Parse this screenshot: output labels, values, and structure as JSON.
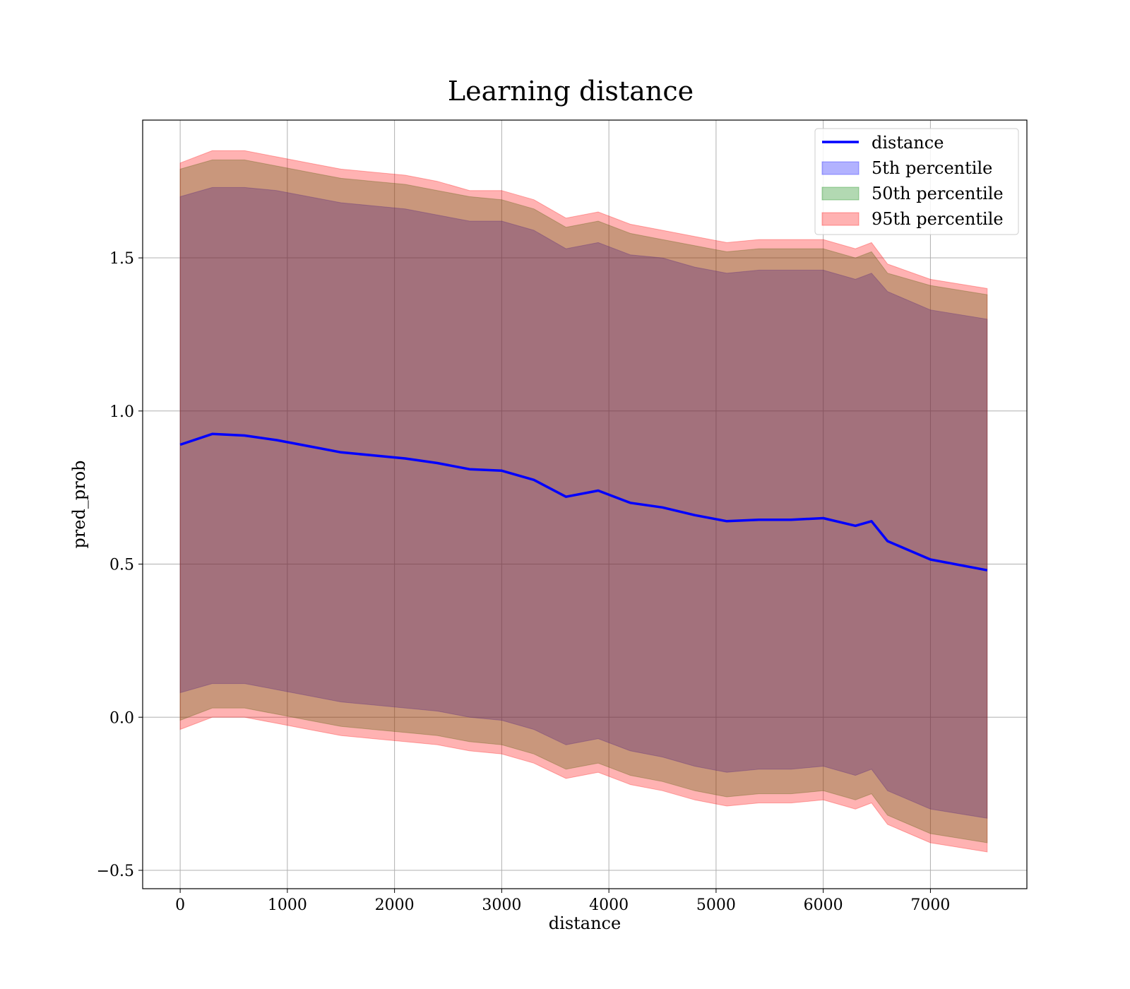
{
  "chart_data": {
    "type": "area",
    "title": "Learning distance",
    "xlabel": "distance",
    "ylabel": "pred_prob",
    "xlim": [
      -350,
      7900
    ],
    "ylim": [
      -0.56,
      1.95
    ],
    "xticks": [
      0,
      1000,
      2000,
      3000,
      4000,
      5000,
      6000,
      7000
    ],
    "yticks": [
      -0.5,
      0.0,
      0.5,
      1.0,
      1.5
    ],
    "ytick_labels": [
      "−0.5",
      "0.0",
      "0.5",
      "1.0",
      "1.5"
    ],
    "grid": true,
    "legend_position": "top-right",
    "x": [
      0,
      300,
      600,
      900,
      1200,
      1500,
      1800,
      2100,
      2400,
      2700,
      3000,
      3300,
      3600,
      3900,
      4200,
      4500,
      4800,
      5100,
      5400,
      5700,
      6000,
      6300,
      6450,
      6600,
      7000,
      7530
    ],
    "series": [
      {
        "name": "distance",
        "kind": "line",
        "color": "#0000ff",
        "values": [
          0.89,
          0.925,
          0.92,
          0.905,
          0.885,
          0.865,
          0.855,
          0.845,
          0.83,
          0.81,
          0.805,
          0.775,
          0.72,
          0.74,
          0.7,
          0.685,
          0.66,
          0.64,
          0.645,
          0.645,
          0.65,
          0.625,
          0.64,
          0.575,
          0.515,
          0.48
        ]
      },
      {
        "name": "5th percentile",
        "kind": "band",
        "color": "#0000ff",
        "upper": [
          1.7,
          1.73,
          1.73,
          1.72,
          1.7,
          1.68,
          1.67,
          1.66,
          1.64,
          1.62,
          1.62,
          1.59,
          1.53,
          1.55,
          1.51,
          1.5,
          1.47,
          1.45,
          1.46,
          1.46,
          1.46,
          1.43,
          1.45,
          1.39,
          1.33,
          1.3
        ],
        "lower": [
          0.08,
          0.11,
          0.11,
          0.09,
          0.07,
          0.05,
          0.04,
          0.03,
          0.02,
          0.0,
          -0.01,
          -0.04,
          -0.09,
          -0.07,
          -0.11,
          -0.13,
          -0.16,
          -0.18,
          -0.17,
          -0.17,
          -0.16,
          -0.19,
          -0.17,
          -0.24,
          -0.3,
          -0.33
        ]
      },
      {
        "name": "50th percentile",
        "kind": "band",
        "color": "#008000",
        "upper": [
          1.79,
          1.82,
          1.82,
          1.8,
          1.78,
          1.76,
          1.75,
          1.74,
          1.72,
          1.7,
          1.69,
          1.66,
          1.6,
          1.62,
          1.58,
          1.56,
          1.54,
          1.52,
          1.53,
          1.53,
          1.53,
          1.5,
          1.52,
          1.45,
          1.41,
          1.38
        ],
        "lower": [
          -0.01,
          0.03,
          0.03,
          0.01,
          -0.01,
          -0.03,
          -0.04,
          -0.05,
          -0.06,
          -0.08,
          -0.09,
          -0.12,
          -0.17,
          -0.15,
          -0.19,
          -0.21,
          -0.24,
          -0.26,
          -0.25,
          -0.25,
          -0.24,
          -0.27,
          -0.25,
          -0.32,
          -0.38,
          -0.41
        ]
      },
      {
        "name": "95th percentile",
        "kind": "band",
        "color": "#ff0000",
        "upper": [
          1.81,
          1.85,
          1.85,
          1.83,
          1.81,
          1.79,
          1.78,
          1.77,
          1.75,
          1.72,
          1.72,
          1.69,
          1.63,
          1.65,
          1.61,
          1.59,
          1.57,
          1.55,
          1.56,
          1.56,
          1.56,
          1.53,
          1.55,
          1.48,
          1.43,
          1.4
        ],
        "lower": [
          -0.04,
          0.0,
          0.0,
          -0.02,
          -0.04,
          -0.06,
          -0.07,
          -0.08,
          -0.09,
          -0.11,
          -0.12,
          -0.15,
          -0.2,
          -0.18,
          -0.22,
          -0.24,
          -0.27,
          -0.29,
          -0.28,
          -0.28,
          -0.27,
          -0.3,
          -0.28,
          -0.35,
          -0.41,
          -0.44
        ]
      }
    ]
  }
}
